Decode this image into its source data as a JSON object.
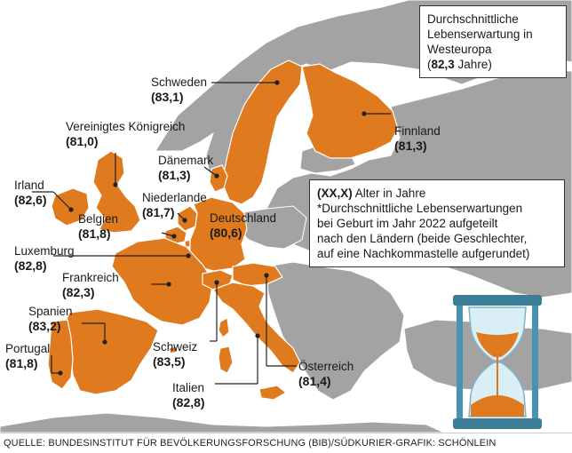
{
  "title_box": {
    "line1": "Durchschnittliche",
    "line2": "Lebenserwartung in",
    "line3": "Westeuropa",
    "value": "82,3",
    "unit": "Jahre"
  },
  "legend": {
    "key": "(XX,X)",
    "key_text": "Alter in Jahre",
    "note_line1": "*Durchschnittliche Lebenserwartungen",
    "note_line2": "bei Geburt im Jahr 2022 aufgeteilt",
    "note_line3": "nach den Ländern (beide Geschlechter,",
    "note_line4": "auf eine Nachkommastelle aufgerundet)"
  },
  "countries": {
    "schweden": {
      "name": "Schweden",
      "value": "83,1"
    },
    "finnland": {
      "name": "Finnland",
      "value": "81,3"
    },
    "vk": {
      "name": "Vereinigtes Königreich",
      "value": "81,0"
    },
    "daenemark": {
      "name": "Dänemark",
      "value": "81,3"
    },
    "irland": {
      "name": "Irland",
      "value": "82,6"
    },
    "niederlande": {
      "name": "Niederlande",
      "value": "81,7"
    },
    "deutschland": {
      "name": "Deutschland",
      "value": "80,6"
    },
    "belgien": {
      "name": "Belgien",
      "value": "81,8"
    },
    "luxemburg": {
      "name": "Luxemburg",
      "value": "82,8"
    },
    "frankreich": {
      "name": "Frankreich",
      "value": "82,3"
    },
    "spanien": {
      "name": "Spanien",
      "value": "83,2"
    },
    "portugal": {
      "name": "Portugal",
      "value": "81,8"
    },
    "schweiz": {
      "name": "Schweiz",
      "value": "83,5"
    },
    "italien": {
      "name": "Italien",
      "value": "82,8"
    },
    "oesterreich": {
      "name": "Österreich",
      "value": "81,4"
    }
  },
  "source": "QUELLE: BUNDESINSTITUT FÜR BEVÖLKERUNGSFORSCHUNG (BIB)/SÜDKURIER-GRAFIK: SCHÖNLEIN",
  "colors": {
    "highlight": "#e07a1f",
    "other_land": "#a3a3a3",
    "sea": "#ffffff",
    "border": "#ffffff"
  }
}
